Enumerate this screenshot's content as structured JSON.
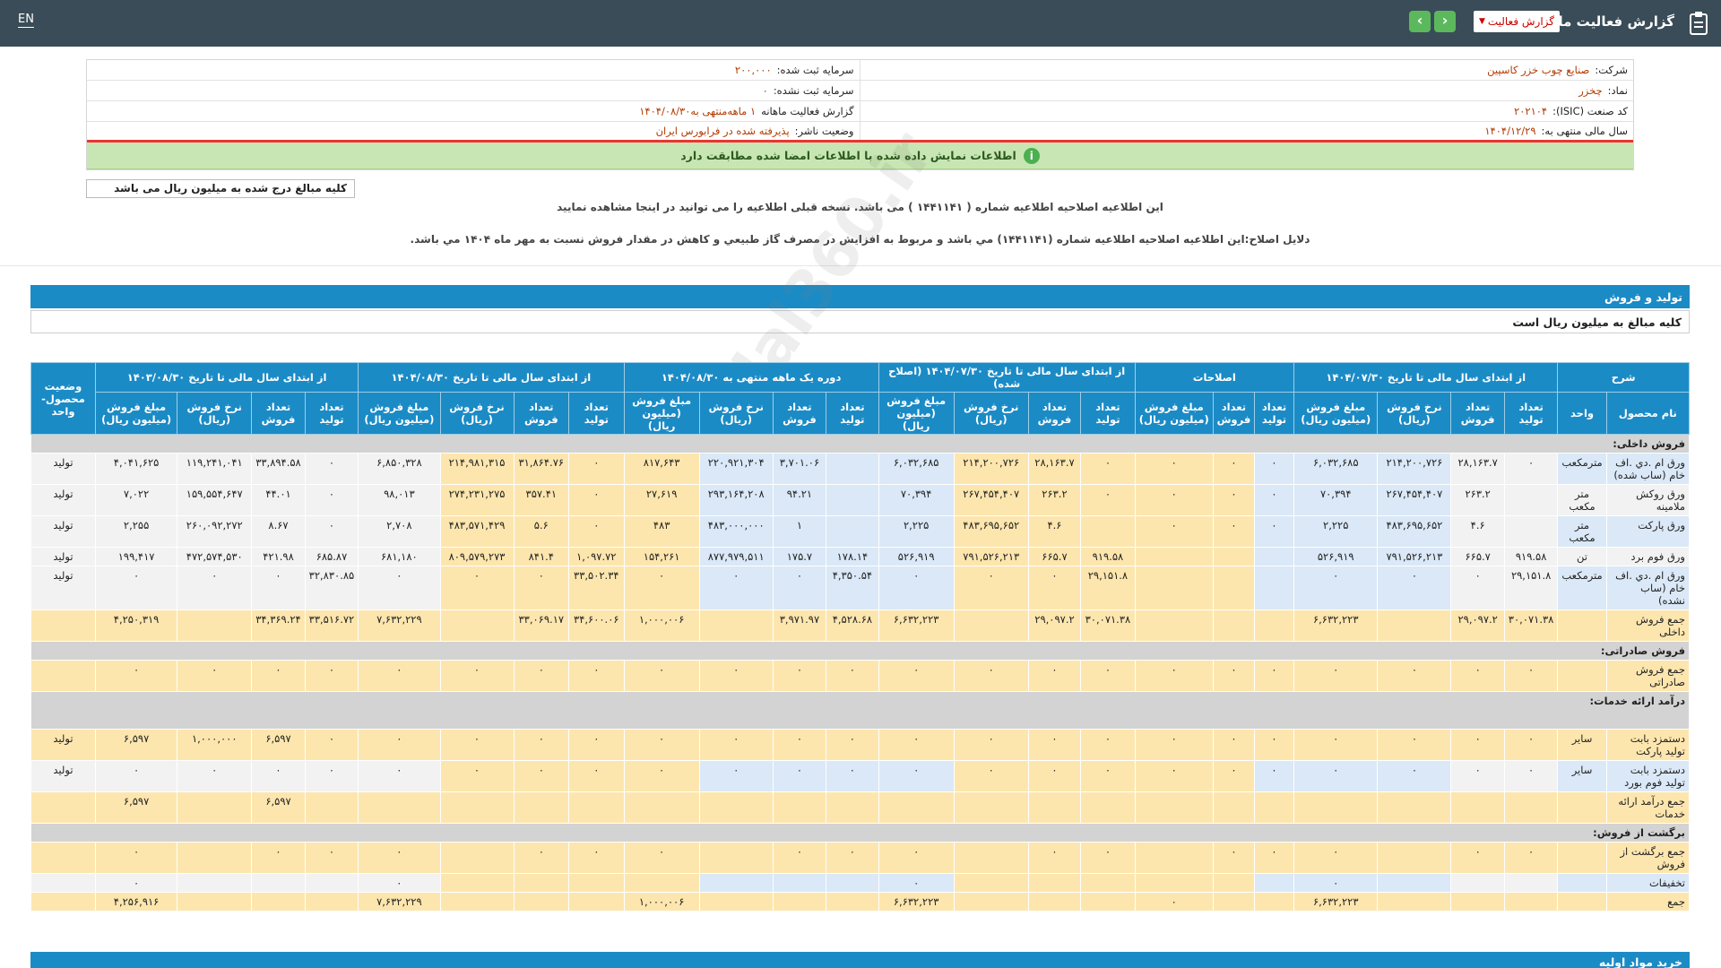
{
  "topbar": {
    "title": "گزارش فعالیت ماهانه",
    "report_type": "گزارش فعالیت",
    "lang": "EN",
    "next_icon": "chevron-right-icon",
    "prev_icon": "chevron-left-icon"
  },
  "info": {
    "company_label": "شرکت:",
    "company_value": "صنایع چوب خزر کاسپین",
    "registered_capital_label": "سرمایه ثبت شده:",
    "registered_capital_value": "۲۰۰,۰۰۰",
    "symbol_label": "نماد:",
    "symbol_value": "چخزر",
    "unregistered_capital_label": "سرمایه ثبت نشده:",
    "unregistered_capital_value": "۰",
    "isic_label": "کد صنعت (ISIC):",
    "isic_value": "۲۰۲۱۰۴",
    "period_label": "گزارش فعالیت ماهانه",
    "period_value": "۱ ماهه‌منتهی به۱۴۰۴/۰۸/۳۰",
    "fiscal_label": "سال مالی منتهی به:",
    "fiscal_value": "۱۴۰۴/۱۲/۲۹",
    "publisher_label": "وضعیت ناشر:",
    "publisher_value": "پذیرفته شده در فرابورس ایران",
    "alert": "اطلاعات نمایش داده شده با اطلاعات امضا شده مطابقت دارد"
  },
  "notes": {
    "unit": "کلیه مبالغ درج شده به میلیون ریال می باشد",
    "correction": "این اطلاعیه اصلاحیه اطلاعیه شماره ( ۱۴۴۱۱۴۱ ) می باشد. نسخه قبلی اطلاعیه را می توانید در اینجا مشاهده نمایید",
    "reason": "دلایل اصلاح:این اطلاعیه اصلاحیه اطلاعیه شماره (۱۴۴۱۱۴۱) مي باشد و مربوط به افزايش در مصرف گاز طبيعي و كاهش در مقدار فروش نسبت به مهر ماه ۱۴۰۴ مي باشد."
  },
  "section": {
    "title": "تولید و فروش",
    "unit_note": "کلیه مبالغ به میلیون ریال است",
    "next_title": "خرید مواد اولیه"
  },
  "table": {
    "groups": [
      "شرح",
      "از ابتدای سال مالی تا تاریخ ۱۴۰۴/۰۷/۳۰",
      "اصلاحات",
      "از ابتدای سال مالی تا تاریخ ۱۴۰۴/۰۷/۳۰ (اصلاح شده)",
      "دوره یک ماهه منتهی به ۱۴۰۴/۰۸/۳۰",
      "از ابتدای سال مالی تا تاریخ ۱۴۰۴/۰۸/۳۰",
      "از ابتدای سال مالی تا تاریخ ۱۴۰۳/۰۸/۳۰",
      "وضعیت محصول-واحد"
    ],
    "sub": {
      "product": "نام محصول",
      "unit": "واحد",
      "prod_qty": "تعداد تولید",
      "sales_qty": "تعداد فروش",
      "sales_rate": "نرخ فروش (ریال)",
      "sales_amount": "مبلغ فروش (میلیون ریال)"
    },
    "rows": [
      {
        "t": "g",
        "label": "فروش داخلی:"
      },
      {
        "t": "d",
        "s": "A",
        "n": "ورق ام .دي .اف خام (ساب شده)",
        "u": "مترمکعب",
        "v": [
          "۰",
          "۲۸,۱۶۳.۷",
          "۲۱۴,۲۰۰,۷۲۶",
          "۶,۰۳۲,۶۸۵",
          "۰",
          "۰",
          "۰",
          "۰",
          "۲۸,۱۶۳.۷",
          "۲۱۴,۲۰۰,۷۲۶",
          "۶,۰۳۲,۶۸۵",
          "",
          "۳,۷۰۱.۰۶",
          "۲۲۰,۹۲۱,۳۰۴",
          "۸۱۷,۶۴۳",
          "۰",
          "۳۱,۸۶۴.۷۶",
          "۲۱۴,۹۸۱,۳۱۵",
          "۶,۸۵۰,۳۲۸",
          "۰",
          "۳۳,۸۹۴.۵۸",
          "۱۱۹,۲۴۱,۰۴۱",
          "۴,۰۴۱,۶۲۵"
        ],
        "st": "تولید"
      },
      {
        "t": "d",
        "s": "W",
        "n": "ورق روکش ملامینه",
        "u": "متر مکعب",
        "v": [
          "",
          "۲۶۳.۲",
          "۲۶۷,۴۵۴,۴۰۷",
          "۷۰,۳۹۴",
          "۰",
          "۰",
          "۰",
          "۰",
          "۲۶۳.۲",
          "۲۶۷,۴۵۴,۴۰۷",
          "۷۰,۳۹۴",
          "",
          "۹۴.۲۱",
          "۲۹۳,۱۶۴,۲۰۸",
          "۲۷,۶۱۹",
          "۰",
          "۳۵۷.۴۱",
          "۲۷۴,۲۳۱,۲۷۵",
          "۹۸,۰۱۳",
          "۰",
          "۴۴.۰۱",
          "۱۵۹,۵۵۴,۶۴۷",
          "۷,۰۲۲"
        ],
        "st": "تولید"
      },
      {
        "t": "d",
        "s": "A",
        "n": "ورق پارکت",
        "u": "متر مکعب",
        "v": [
          "",
          "۴.۶",
          "۴۸۳,۶۹۵,۶۵۲",
          "۲,۲۲۵",
          "۰",
          "۰",
          "۰",
          "",
          "۴.۶",
          "۴۸۳,۶۹۵,۶۵۲",
          "۲,۲۲۵",
          "",
          "۱",
          "۴۸۳,۰۰۰,۰۰۰",
          "۴۸۳",
          "۰",
          "۵.۶",
          "۴۸۳,۵۷۱,۴۲۹",
          "۲,۷۰۸",
          "۰",
          "۸.۶۷",
          "۲۶۰,۰۹۲,۲۷۲",
          "۲,۲۵۵"
        ],
        "st": "تولید"
      },
      {
        "t": "d",
        "s": "W",
        "n": "ورق فوم برد",
        "u": "تن",
        "v": [
          "۹۱۹.۵۸",
          "۶۶۵.۷",
          "۷۹۱,۵۲۶,۲۱۳",
          "۵۲۶,۹۱۹",
          "",
          "",
          "",
          "۹۱۹.۵۸",
          "۶۶۵.۷",
          "۷۹۱,۵۲۶,۲۱۳",
          "۵۲۶,۹۱۹",
          "۱۷۸.۱۴",
          "۱۷۵.۷",
          "۸۷۷,۹۷۹,۵۱۱",
          "۱۵۴,۲۶۱",
          "۱,۰۹۷.۷۲",
          "۸۴۱.۴",
          "۸۰۹,۵۷۹,۲۷۳",
          "۶۸۱,۱۸۰",
          "۶۸۵.۸۷",
          "۴۲۱.۹۸",
          "۴۷۲,۵۷۴,۵۳۰",
          "۱۹۹,۴۱۷"
        ],
        "st": "تولید"
      },
      {
        "t": "d",
        "s": "A",
        "n": "ورق ام .دي .اف خام (ساب نشده)",
        "u": "مترمکعب",
        "v": [
          "۲۹,۱۵۱.۸",
          "۰",
          "۰",
          "۰",
          "",
          "",
          "",
          "۲۹,۱۵۱.۸",
          "۰",
          "۰",
          "۰",
          "۴,۳۵۰.۵۴",
          "۰",
          "۰",
          "۰",
          "۳۳,۵۰۲.۳۴",
          "۰",
          "۰",
          "۰",
          "۳۲,۸۳۰.۸۵",
          "۰",
          "۰",
          "۰"
        ],
        "st": "تولید"
      },
      {
        "t": "d",
        "s": "B",
        "n": "جمع فروش داخلی",
        "u": "",
        "v": [
          "۳۰,۰۷۱.۳۸",
          "۲۹,۰۹۷.۲",
          "",
          "۶,۶۳۲,۲۲۳",
          "",
          "",
          "",
          "۳۰,۰۷۱.۳۸",
          "۲۹,۰۹۷.۲",
          "",
          "۶,۶۳۲,۲۲۳",
          "۴,۵۲۸.۶۸",
          "۳,۹۷۱.۹۷",
          "",
          "۱,۰۰۰,۰۰۶",
          "۳۴,۶۰۰.۰۶",
          "۳۳,۰۶۹.۱۷",
          "",
          "۷,۶۳۲,۲۲۹",
          "۳۳,۵۱۶.۷۲",
          "۳۴,۳۶۹.۲۴",
          "",
          "۴,۲۵۰,۳۱۹"
        ],
        "st": ""
      },
      {
        "t": "g",
        "label": "فروش صادراتی:"
      },
      {
        "t": "d",
        "s": "B",
        "n": "جمع فروش صادراتی",
        "u": "",
        "v": [
          "۰",
          "۰",
          "۰",
          "۰",
          "۰",
          "۰",
          "۰",
          "۰",
          "۰",
          "۰",
          "۰",
          "۰",
          "۰",
          "۰",
          "۰",
          "۰",
          "۰",
          "۰",
          "۰",
          "۰",
          "۰",
          "۰",
          "۰"
        ],
        "st": ""
      },
      {
        "t": "g2",
        "label": "درآمد ارائه خدمات:"
      },
      {
        "t": "d",
        "s": "B",
        "n": "دستمزد بابت تولید پارکت",
        "u": "سایر",
        "v": [
          "۰",
          "۰",
          "۰",
          "۰",
          "۰",
          "۰",
          "۰",
          "۰",
          "۰",
          "۰",
          "۰",
          "۰",
          "۰",
          "۰",
          "۰",
          "۰",
          "۰",
          "۰",
          "۰",
          "۰",
          "۶,۵۹۷",
          "۱,۰۰۰,۰۰۰",
          "۶,۵۹۷"
        ],
        "st": "تولید"
      },
      {
        "t": "d",
        "s": "A",
        "n": "دستمزد بابت تولید فوم بورد",
        "u": "سایر",
        "v": [
          "۰",
          "۰",
          "۰",
          "۰",
          "۰",
          "۰",
          "۰",
          "۰",
          "۰",
          "۰",
          "۰",
          "۰",
          "۰",
          "۰",
          "۰",
          "۰",
          "۰",
          "۰",
          "۰",
          "۰",
          "۰",
          "۰",
          "۰"
        ],
        "st": "تولید"
      },
      {
        "t": "d",
        "s": "B",
        "n": "جمع درآمد ارائه خدمات",
        "u": "",
        "v": [
          "",
          "",
          "",
          "",
          "",
          "",
          "",
          "",
          "",
          "",
          "",
          "",
          "",
          "",
          "",
          "",
          "",
          "",
          "",
          "",
          "۶,۵۹۷",
          "",
          "۶,۵۹۷"
        ],
        "st": ""
      },
      {
        "t": "g",
        "label": "برگشت از فروش:"
      },
      {
        "t": "d",
        "s": "B",
        "n": "جمع برگشت از فروش",
        "u": "",
        "v": [
          "۰",
          "۰",
          "",
          "۰",
          "۰",
          "۰",
          "",
          "۰",
          "۰",
          "",
          "۰",
          "۰",
          "۰",
          "",
          "۰",
          "۰",
          "۰",
          "",
          "۰",
          "۰",
          "۰",
          "",
          "۰"
        ],
        "st": ""
      },
      {
        "t": "d",
        "s": "A",
        "n": "تخفیفات",
        "u": "",
        "v": [
          "",
          "",
          "",
          "۰",
          "",
          "",
          "",
          "",
          "",
          "",
          "۰",
          "",
          "",
          "",
          "",
          "",
          "",
          "",
          "۰",
          "",
          "",
          "",
          "۰"
        ],
        "st": ""
      },
      {
        "t": "d",
        "s": "B",
        "n": "جمع",
        "u": "",
        "v": [
          "",
          "",
          "",
          "۶,۶۳۲,۲۲۳",
          "",
          "",
          "۰",
          "",
          "",
          "",
          "۶,۶۳۲,۲۲۳",
          "",
          "",
          "",
          "۱,۰۰۰,۰۰۶",
          "",
          "",
          "",
          "۷,۶۳۲,۲۲۹",
          "",
          "",
          "",
          "۴,۲۵۶,۹۱۶"
        ],
        "st": ""
      }
    ]
  },
  "colors": {
    "header_bg": "#3a4c57",
    "table_header": "#1b8bc6",
    "row_blue": "#dae8f7",
    "row_yellow": "#fde6ae"
  }
}
